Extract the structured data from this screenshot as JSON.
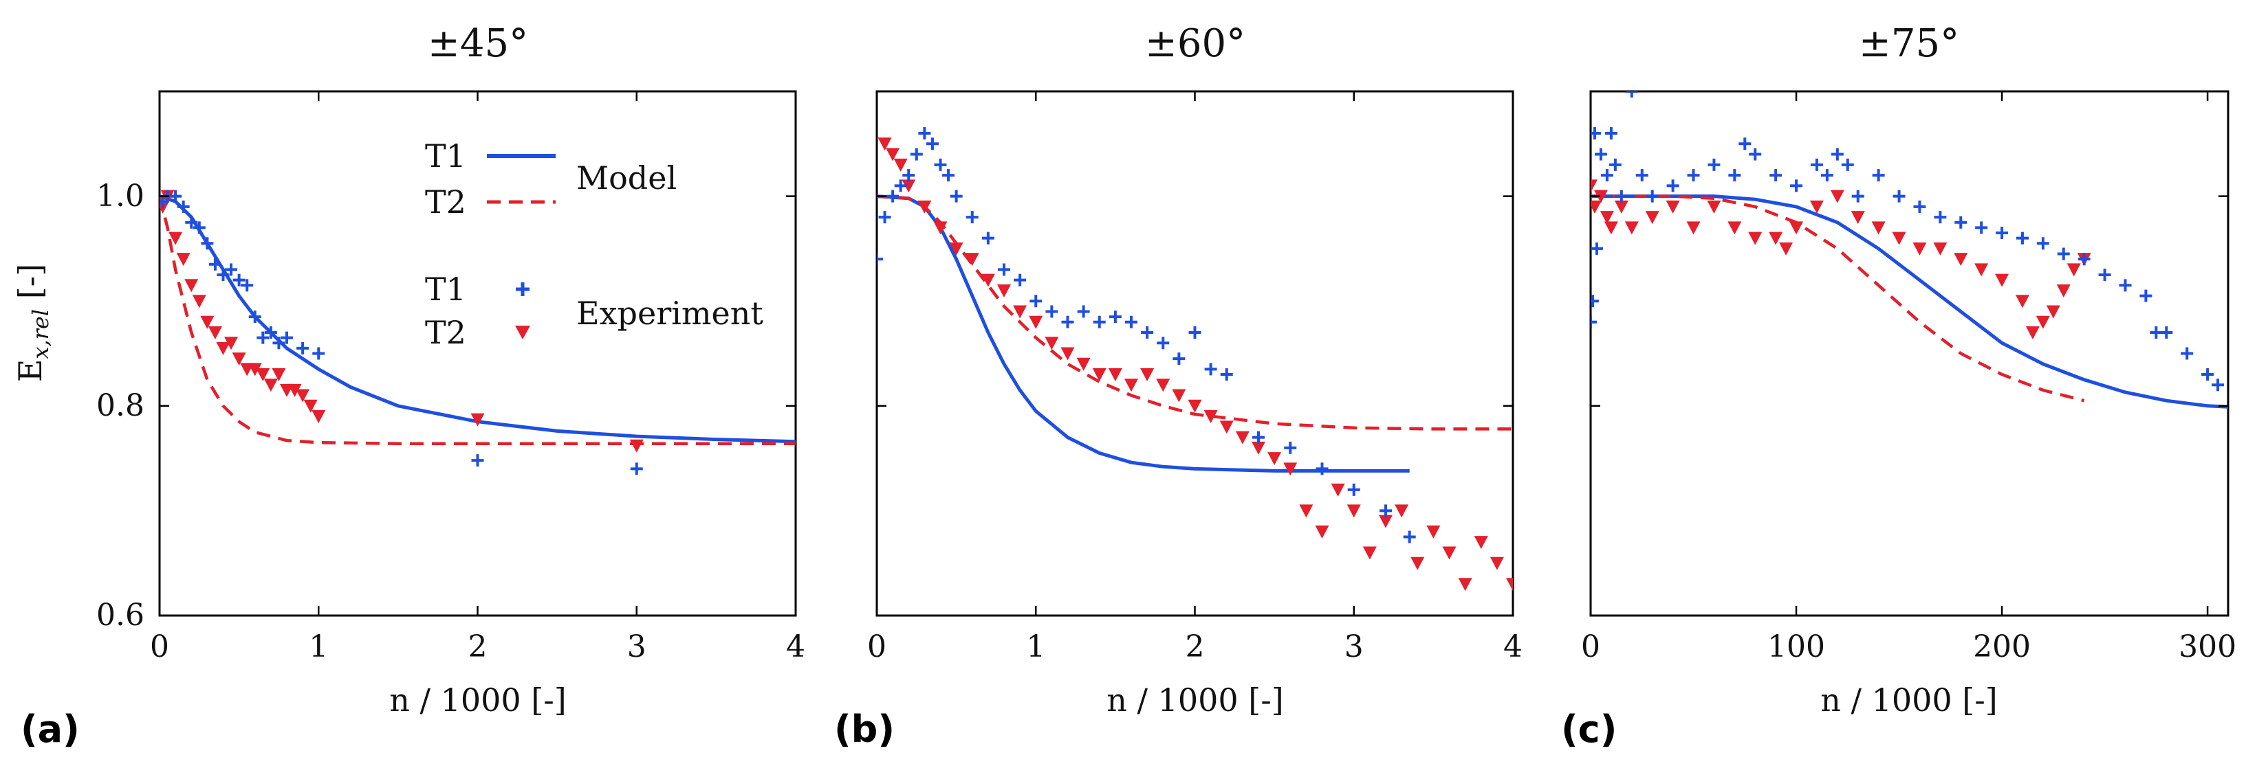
{
  "colors": {
    "T1": "#1f4fe0",
    "T2": "#e3202b"
  },
  "shared": {
    "ylabel_main": "E",
    "ylabel_sub": "x,rel",
    "ylabel_unit": " [-]",
    "yticks": [
      "0.6",
      "0.8",
      "1.0"
    ]
  },
  "legend": {
    "t1": "T1",
    "t2": "T2",
    "model": "Model",
    "t1_exp": "T1",
    "t2_exp": "T2",
    "experiment": "Experiment"
  },
  "chart_data": [
    {
      "type": "line+scatter",
      "letter": "(a)",
      "title": "±45°",
      "xlabel": "n  / 1000 [-]",
      "ylabel": "Ex,rel [-]",
      "xlim": [
        0,
        4
      ],
      "ylim": [
        0.6,
        1.1
      ],
      "xticks": [
        0,
        1,
        2,
        3,
        4
      ],
      "xtick_labels": [
        "0",
        "1",
        "2",
        "3",
        "4"
      ],
      "yticks": [
        0.6,
        0.8,
        1.0
      ],
      "model": {
        "T1": {
          "x": [
            0,
            0.1,
            0.2,
            0.3,
            0.4,
            0.5,
            0.6,
            0.8,
            1.0,
            1.2,
            1.5,
            2.0,
            2.5,
            3.0,
            3.5,
            4.0
          ],
          "y": [
            1.0,
            0.995,
            0.98,
            0.955,
            0.93,
            0.905,
            0.885,
            0.855,
            0.835,
            0.818,
            0.8,
            0.785,
            0.776,
            0.771,
            0.768,
            0.766
          ]
        },
        "T2": {
          "x": [
            0,
            0.05,
            0.1,
            0.2,
            0.3,
            0.4,
            0.5,
            0.6,
            0.8,
            1.0,
            1.5,
            2.0,
            3.0,
            4.0
          ],
          "y": [
            1.0,
            0.97,
            0.93,
            0.87,
            0.825,
            0.8,
            0.785,
            0.775,
            0.767,
            0.765,
            0.764,
            0.764,
            0.764,
            0.764
          ]
        }
      },
      "experiment": {
        "T1": {
          "x": [
            0.02,
            0.05,
            0.1,
            0.15,
            0.2,
            0.25,
            0.3,
            0.35,
            0.4,
            0.45,
            0.5,
            0.55,
            0.6,
            0.65,
            0.7,
            0.75,
            0.8,
            0.9,
            1.0,
            2.0,
            3.0
          ],
          "y": [
            0.995,
            1.0,
            1.0,
            0.99,
            0.975,
            0.97,
            0.955,
            0.935,
            0.925,
            0.93,
            0.92,
            0.915,
            0.885,
            0.865,
            0.87,
            0.86,
            0.865,
            0.855,
            0.85,
            0.748,
            0.74
          ]
        },
        "T2": {
          "x": [
            0.02,
            0.05,
            0.1,
            0.15,
            0.2,
            0.25,
            0.3,
            0.35,
            0.4,
            0.45,
            0.5,
            0.55,
            0.6,
            0.65,
            0.7,
            0.75,
            0.8,
            0.85,
            0.9,
            0.95,
            1.0,
            2.0,
            3.0
          ],
          "y": [
            0.99,
            1.0,
            0.96,
            0.94,
            0.915,
            0.9,
            0.88,
            0.87,
            0.855,
            0.86,
            0.845,
            0.835,
            0.835,
            0.83,
            0.82,
            0.83,
            0.815,
            0.815,
            0.81,
            0.8,
            0.79,
            0.787,
            0.762
          ]
        }
      }
    },
    {
      "type": "line+scatter",
      "letter": "(b)",
      "title": "±60°",
      "xlabel": "n  / 1000 [-]",
      "ylabel": "Ex,rel [-]",
      "xlim": [
        0,
        4
      ],
      "ylim": [
        0.6,
        1.1
      ],
      "xticks": [
        0,
        1,
        2,
        3,
        4
      ],
      "xtick_labels": [
        "0",
        "1",
        "2",
        "3",
        "4"
      ],
      "yticks": [
        0.6,
        0.8,
        1.0
      ],
      "model": {
        "T1": {
          "x": [
            0,
            0.2,
            0.3,
            0.4,
            0.5,
            0.6,
            0.7,
            0.8,
            0.9,
            1.0,
            1.2,
            1.4,
            1.6,
            1.8,
            2.0,
            2.5,
            3.0,
            3.35
          ],
          "y": [
            1.0,
            0.998,
            0.99,
            0.97,
            0.94,
            0.905,
            0.87,
            0.84,
            0.815,
            0.795,
            0.77,
            0.755,
            0.746,
            0.742,
            0.74,
            0.738,
            0.738,
            0.738
          ]
        },
        "T2": {
          "x": [
            0,
            0.2,
            0.3,
            0.4,
            0.5,
            0.6,
            0.8,
            1.0,
            1.2,
            1.4,
            1.6,
            1.8,
            2.0,
            2.5,
            3.0,
            3.5,
            4.0
          ],
          "y": [
            1.0,
            0.998,
            0.99,
            0.975,
            0.955,
            0.935,
            0.895,
            0.865,
            0.84,
            0.823,
            0.81,
            0.8,
            0.792,
            0.783,
            0.779,
            0.778,
            0.778
          ]
        }
      },
      "experiment": {
        "T1": {
          "x": [
            0.0,
            0.05,
            0.1,
            0.15,
            0.2,
            0.25,
            0.3,
            0.35,
            0.4,
            0.45,
            0.5,
            0.6,
            0.7,
            0.8,
            0.9,
            1.0,
            1.1,
            1.2,
            1.3,
            1.4,
            1.5,
            1.6,
            1.7,
            1.8,
            1.9,
            2.0,
            2.1,
            2.2,
            2.4,
            2.6,
            2.8,
            3.0,
            3.2,
            3.35
          ],
          "y": [
            0.94,
            0.98,
            1.0,
            1.01,
            1.02,
            1.04,
            1.06,
            1.05,
            1.03,
            1.02,
            1.0,
            0.98,
            0.96,
            0.93,
            0.92,
            0.9,
            0.89,
            0.88,
            0.89,
            0.88,
            0.885,
            0.88,
            0.87,
            0.86,
            0.845,
            0.87,
            0.835,
            0.83,
            0.77,
            0.76,
            0.74,
            0.72,
            0.7,
            0.675
          ]
        },
        "T2": {
          "x": [
            0.05,
            0.1,
            0.15,
            0.2,
            0.3,
            0.4,
            0.5,
            0.6,
            0.7,
            0.8,
            0.9,
            1.0,
            1.1,
            1.2,
            1.3,
            1.4,
            1.5,
            1.6,
            1.7,
            1.8,
            1.9,
            2.0,
            2.1,
            2.2,
            2.3,
            2.4,
            2.5,
            2.6,
            2.7,
            2.8,
            2.9,
            3.0,
            3.1,
            3.2,
            3.3,
            3.4,
            3.5,
            3.6,
            3.7,
            3.8,
            3.9,
            4.0
          ],
          "y": [
            1.05,
            1.04,
            1.03,
            1.01,
            0.99,
            0.97,
            0.95,
            0.94,
            0.92,
            0.91,
            0.89,
            0.88,
            0.86,
            0.85,
            0.84,
            0.83,
            0.83,
            0.82,
            0.83,
            0.82,
            0.81,
            0.8,
            0.79,
            0.78,
            0.77,
            0.76,
            0.75,
            0.74,
            0.7,
            0.68,
            0.72,
            0.7,
            0.66,
            0.69,
            0.7,
            0.65,
            0.68,
            0.66,
            0.63,
            0.67,
            0.65,
            0.63
          ]
        }
      }
    },
    {
      "type": "line+scatter",
      "letter": "(c)",
      "title": "±75°",
      "xlabel": "n  / 1000 [-]",
      "ylabel": "Ex,rel [-]",
      "xlim": [
        0,
        310
      ],
      "ylim": [
        0.6,
        1.1
      ],
      "xticks": [
        0,
        100,
        200,
        300
      ],
      "xtick_labels": [
        "0",
        "100",
        "200",
        "300"
      ],
      "yticks": [
        0.6,
        0.8,
        1.0
      ],
      "model": {
        "T1": {
          "x": [
            0,
            20,
            40,
            60,
            80,
            100,
            120,
            140,
            160,
            180,
            200,
            220,
            240,
            260,
            280,
            300,
            310
          ],
          "y": [
            1.0,
            1.0,
            1.0,
            1.0,
            0.997,
            0.99,
            0.975,
            0.95,
            0.92,
            0.89,
            0.86,
            0.84,
            0.825,
            0.813,
            0.805,
            0.8,
            0.799
          ]
        },
        "T2": {
          "x": [
            0,
            20,
            40,
            60,
            80,
            100,
            120,
            140,
            160,
            180,
            200,
            220,
            240
          ],
          "y": [
            1.0,
            1.0,
            1.0,
            0.998,
            0.99,
            0.975,
            0.95,
            0.915,
            0.88,
            0.85,
            0.83,
            0.815,
            0.805
          ]
        }
      },
      "experiment": {
        "T1": {
          "x": [
            0,
            1,
            2,
            3,
            5,
            8,
            10,
            12,
            15,
            20,
            25,
            30,
            40,
            50,
            60,
            70,
            75,
            80,
            90,
            100,
            110,
            115,
            120,
            125,
            130,
            140,
            150,
            160,
            170,
            180,
            190,
            200,
            210,
            220,
            230,
            240,
            250,
            260,
            270,
            275,
            280,
            290,
            300,
            305
          ],
          "y": [
            0.88,
            0.9,
            1.06,
            0.95,
            1.04,
            1.02,
            1.06,
            1.03,
            1.0,
            1.1,
            1.02,
            1.0,
            1.01,
            1.02,
            1.03,
            1.02,
            1.05,
            1.04,
            1.02,
            1.01,
            1.03,
            1.02,
            1.04,
            1.03,
            1.0,
            1.02,
            1.0,
            0.99,
            0.98,
            0.975,
            0.97,
            0.965,
            0.96,
            0.955,
            0.945,
            0.94,
            0.925,
            0.915,
            0.905,
            0.87,
            0.87,
            0.85,
            0.83,
            0.82
          ]
        },
        "T2": {
          "x": [
            0,
            2,
            5,
            8,
            10,
            15,
            20,
            30,
            40,
            50,
            60,
            70,
            80,
            90,
            95,
            100,
            110,
            120,
            130,
            140,
            150,
            160,
            170,
            180,
            190,
            200,
            210,
            215,
            220,
            225,
            230,
            235,
            240
          ],
          "y": [
            1.01,
            0.99,
            1.0,
            0.98,
            0.97,
            0.99,
            0.97,
            0.98,
            0.99,
            0.97,
            0.99,
            0.97,
            0.96,
            0.96,
            0.95,
            0.97,
            0.99,
            1.0,
            0.98,
            0.97,
            0.96,
            0.95,
            0.95,
            0.94,
            0.93,
            0.92,
            0.9,
            0.87,
            0.88,
            0.89,
            0.91,
            0.93,
            0.94
          ]
        }
      }
    }
  ]
}
